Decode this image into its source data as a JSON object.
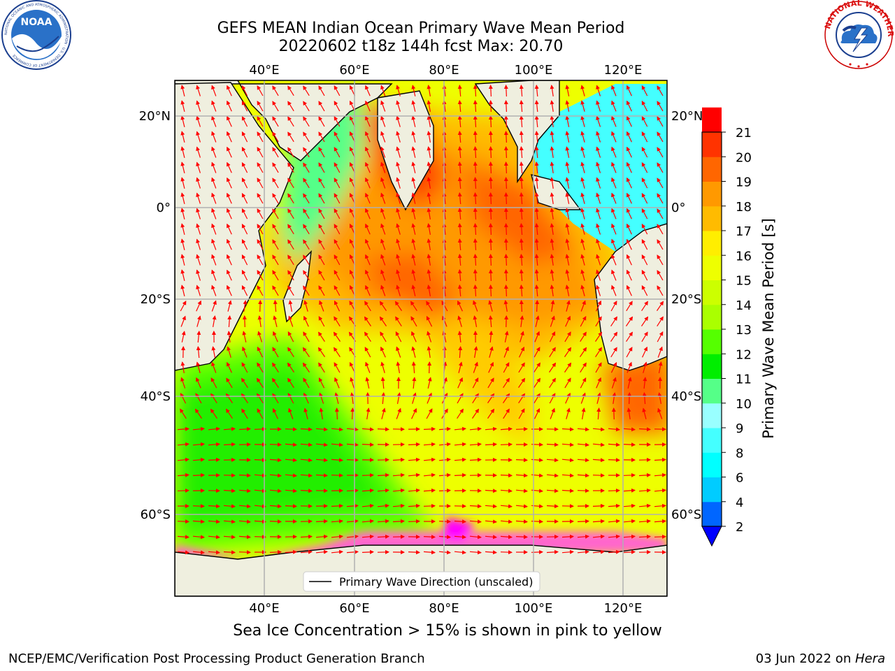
{
  "header": {
    "title_line1": "GEFS MEAN Indian Ocean Primary Wave Mean Period",
    "title_line2": "20220602 t18z 144h fcst   Max: 20.70"
  },
  "logos": {
    "noaa_text": "NOAA",
    "noaa_ring": "NATIONAL OCEANIC AND ATMOSPHERIC ADMINISTRATION · U.S. DEPARTMENT OF COMMERCE",
    "nws_ring": "NATIONAL WEATHER SERVICE"
  },
  "map": {
    "lon_labels": [
      "40°E",
      "60°E",
      "80°E",
      "100°E",
      "120°E"
    ],
    "lat_labels": [
      "20°N",
      "0°",
      "20°S",
      "40°S",
      "60°S"
    ],
    "legend_label": "Primary Wave Direction (unscaled)",
    "vector_color": "#ff0000",
    "land_color": "#efefdf",
    "sea_ice_colors": [
      "#ff00ff",
      "#ff66cc",
      "#ffff00"
    ]
  },
  "colorbar": {
    "label": "Primary Wave Mean Period [s]",
    "tick_labels": [
      "2",
      "4",
      "6",
      "8",
      "9",
      "10",
      "11",
      "12",
      "13",
      "14",
      "15",
      "16",
      "17",
      "18",
      "19",
      "20",
      "21"
    ],
    "colors": [
      "#0066ff",
      "#00ccff",
      "#00ffff",
      "#44ffff",
      "#99ffff",
      "#55ff88",
      "#00ee00",
      "#55ff00",
      "#aaff00",
      "#ccff00",
      "#eeff00",
      "#ffee00",
      "#ffbb00",
      "#ff9900",
      "#ff6600",
      "#ff3300",
      "#ff0000"
    ],
    "underflow_color": "#0000ff"
  },
  "note": "Sea Ice Concentration > 15% is shown in pink to yellow",
  "footer": {
    "left": "NCEP/EMC/Verification Post Processing Product Generation Branch",
    "right_prefix": "03 Jun 2022 on ",
    "right_host": "Hera"
  }
}
